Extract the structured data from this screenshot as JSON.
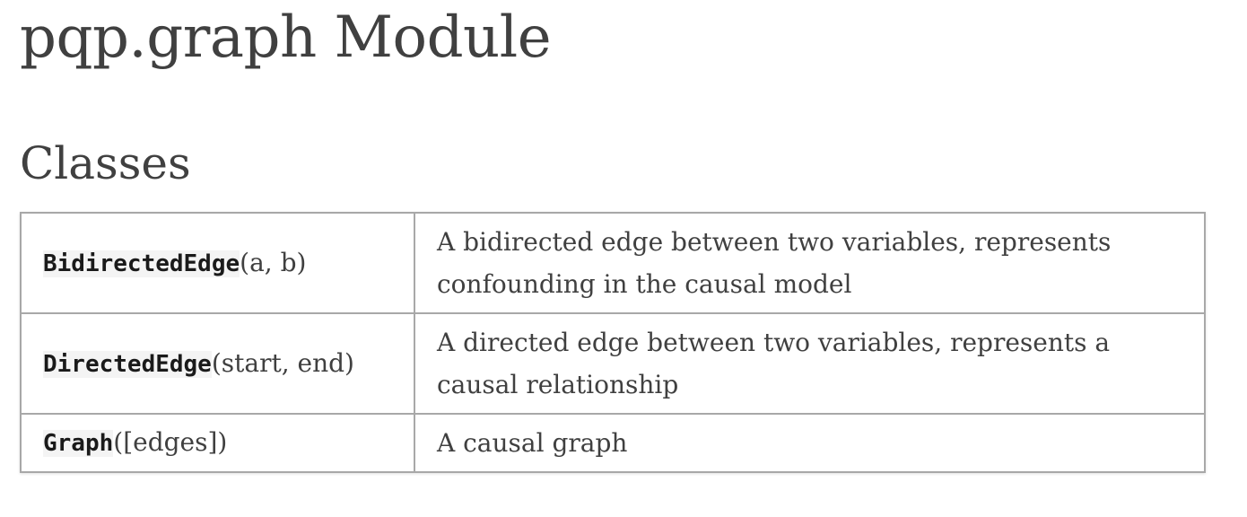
{
  "page": {
    "title": "pqp.graph Module",
    "section_heading": "Classes"
  },
  "classes": [
    {
      "name": "BidirectedEdge",
      "args": "(a, b)",
      "description": "A bidirected edge between two variables, represents confounding in the causal model"
    },
    {
      "name": "DirectedEdge",
      "args": "(start, end)",
      "description": "A directed edge between two variables, represents a causal relationship"
    },
    {
      "name": "Graph",
      "args": "([edges])",
      "description": "A causal graph"
    }
  ]
}
